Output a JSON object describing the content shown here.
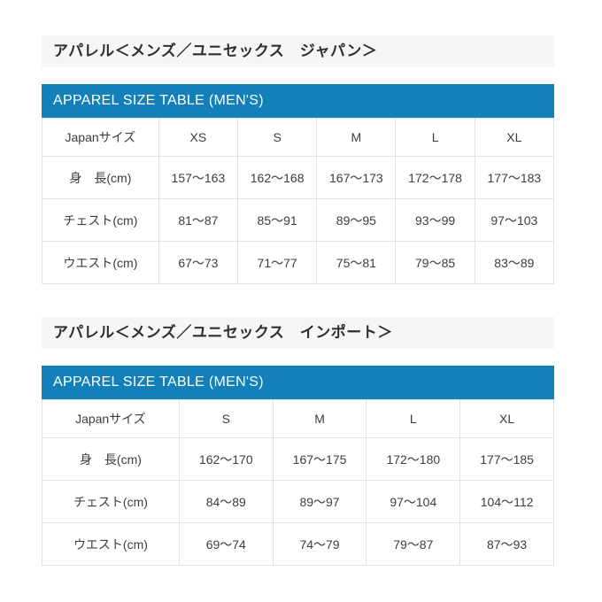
{
  "colors": {
    "banner_blue": "#1480b9",
    "title_bar_bg": "#f6f6f6",
    "table_border": "#e2e2e2",
    "body_text": "#3d3d3d",
    "banner_text": "#ffffff"
  },
  "sections": [
    {
      "title": "アパレル＜メンズ／ユニセックス　ジャパン＞",
      "banner": "APPAREL SIZE TABLE (MEN'S)",
      "table": {
        "header": [
          "Japanサイズ",
          "XS",
          "S",
          "M",
          "L",
          "XL"
        ],
        "rows": [
          {
            "label": "身　長(cm)",
            "values": [
              "157～163",
              "162～168",
              "167～173",
              "172～178",
              "177～183"
            ]
          },
          {
            "label": "チェスト(cm)",
            "values": [
              "81～87",
              "85～91",
              "89～95",
              "93～99",
              "97～103"
            ]
          },
          {
            "label": "ウエスト(cm)",
            "values": [
              "67～73",
              "71～77",
              "75～81",
              "79～85",
              "83～89"
            ]
          }
        ]
      }
    },
    {
      "title": "アパレル＜メンズ／ユニセックス　インポート＞",
      "banner": "APPAREL SIZE TABLE (MEN'S)",
      "table": {
        "header": [
          "Japanサイズ",
          "S",
          "M",
          "L",
          "XL"
        ],
        "rows": [
          {
            "label": "身　長(cm)",
            "values": [
              "162～170",
              "167～175",
              "172～180",
              "177～185"
            ]
          },
          {
            "label": "チェスト(cm)",
            "values": [
              "84～89",
              "89～97",
              "97～104",
              "104～112"
            ]
          },
          {
            "label": "ウエスト(cm)",
            "values": [
              "69～74",
              "74～79",
              "79～87",
              "87～93"
            ]
          }
        ]
      }
    }
  ]
}
